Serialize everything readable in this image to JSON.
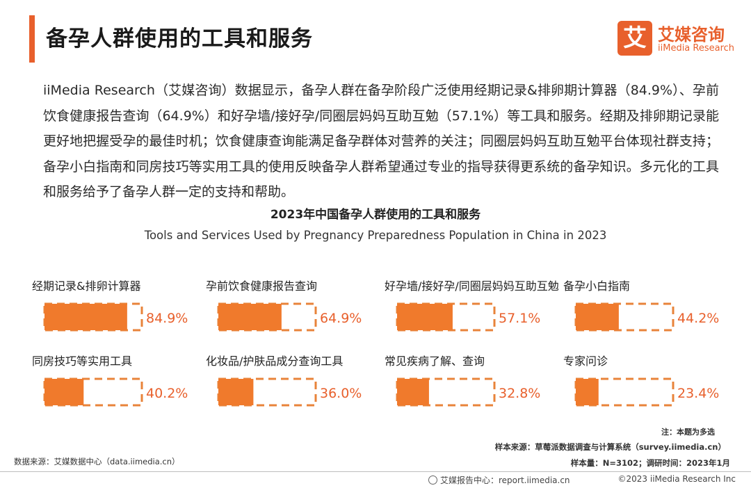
{
  "header": {
    "title": "备孕人群使用的工具和服务",
    "logo_mark": "艾",
    "logo_cn": "艾媒咨询",
    "logo_en": "iiMedia Research"
  },
  "intro": "iiMedia Research（艾媒咨询）数据显示，备孕人群在备孕阶段广泛使用经期记录&排卵期计算器（84.9%）、孕前饮食健康报告查询（64.9%）和好孕墙/接好孕/同圈层妈妈互助互勉（57.1%）等工具和服务。经期及排卵期记录能更好地把握受孕的最佳时机；饮食健康查询能满足备孕群体对营养的关注；同圈层妈妈互助互勉平台体现社群支持；备孕小白指南和同房技巧等实用工具的使用反映备孕人群希望通过专业的指导获得更系统的备孕知识。多元化的工具和服务给予了备孕人群一定的支持和帮助。",
  "chart_data": {
    "type": "bar",
    "title": "2023年中国备孕人群使用的工具和服务",
    "subtitle": "Tools and Services Used by Pregnancy Preparedness Population in China in 2023",
    "categories": [
      "经期记录&排卵计算器",
      "孕前饮食健康报告查询",
      "好孕墙/接好孕/同圈层妈妈互助互勉",
      "备孕小白指南",
      "同房技巧等实用工具",
      "化妆品/护肤品成分查询工具",
      "常见疾病了解、查询",
      "专家问诊"
    ],
    "values": [
      84.9,
      64.9,
      57.1,
      44.2,
      40.2,
      36.0,
      32.8,
      23.4
    ],
    "labels": [
      "84.9%",
      "64.9%",
      "57.1%",
      "44.2%",
      "40.2%",
      "36.0%",
      "32.8%",
      "23.4%"
    ],
    "ylim": [
      0,
      100
    ],
    "grid": false,
    "colors": {
      "fill": "#f07a2c",
      "outline": "#e8833a",
      "label": "#e8602c"
    }
  },
  "footer": {
    "note": "注：本题为多选",
    "sample_source": "样本来源：草莓派数据调查与计算系统（survey.iimedia.cn）",
    "sample_count": "样本量：N=3102；调研时间：2023年1月",
    "data_source": "数据来源：艾媒数据中心（data.iimedia.cn）",
    "report_center": "艾媒报告中心：report.iimedia.cn",
    "copyright": "©2023  iiMedia Research  Inc"
  }
}
